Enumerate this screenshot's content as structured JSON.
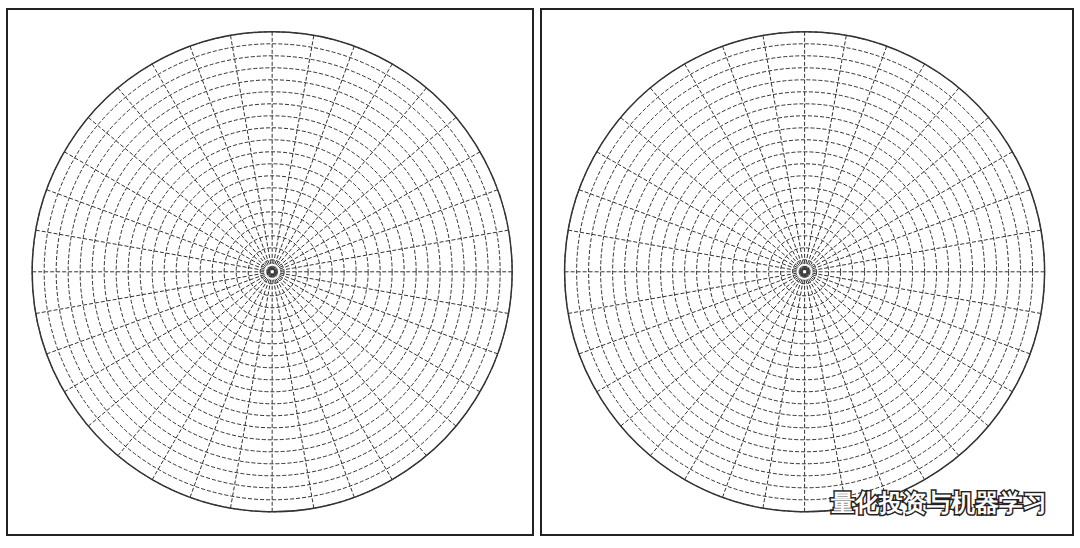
{
  "chart_data": [
    {
      "type": "polar",
      "grid": true,
      "tick_labels": false,
      "color": "#333333",
      "xlim": [
        0,
        360
      ],
      "xticks": [
        0,
        10,
        20,
        30,
        40,
        50,
        60,
        70,
        80,
        90,
        100,
        110,
        120,
        130,
        140,
        150,
        160,
        170,
        180,
        190,
        200,
        210,
        220,
        230,
        240,
        250,
        260,
        270,
        280,
        290,
        300,
        310,
        320,
        330,
        340,
        350,
        360
      ],
      "ylim": [
        0,
        20
      ],
      "yticks": [
        0,
        1,
        2,
        3,
        4,
        5,
        6,
        7,
        8,
        9,
        10,
        11,
        12,
        13,
        14,
        15,
        16,
        17,
        18,
        19,
        20
      ]
    },
    {
      "type": "polar",
      "grid": true,
      "tick_labels": false,
      "color": "#333333",
      "xlim": [
        0,
        360
      ],
      "xticks": [
        0,
        10,
        20,
        30,
        40,
        50,
        60,
        70,
        80,
        90,
        100,
        110,
        120,
        130,
        140,
        150,
        160,
        170,
        180,
        190,
        200,
        210,
        220,
        230,
        240,
        250,
        260,
        270,
        280,
        290,
        300,
        310,
        320,
        330,
        340,
        350,
        360
      ],
      "ylim": [
        0,
        20
      ],
      "yticks": [
        0,
        1,
        2,
        3,
        4,
        5,
        6,
        7,
        8,
        9,
        10,
        11,
        12,
        13,
        14,
        15,
        16,
        17,
        18,
        19,
        20
      ]
    }
  ],
  "watermark": "量化投资与机器学习"
}
